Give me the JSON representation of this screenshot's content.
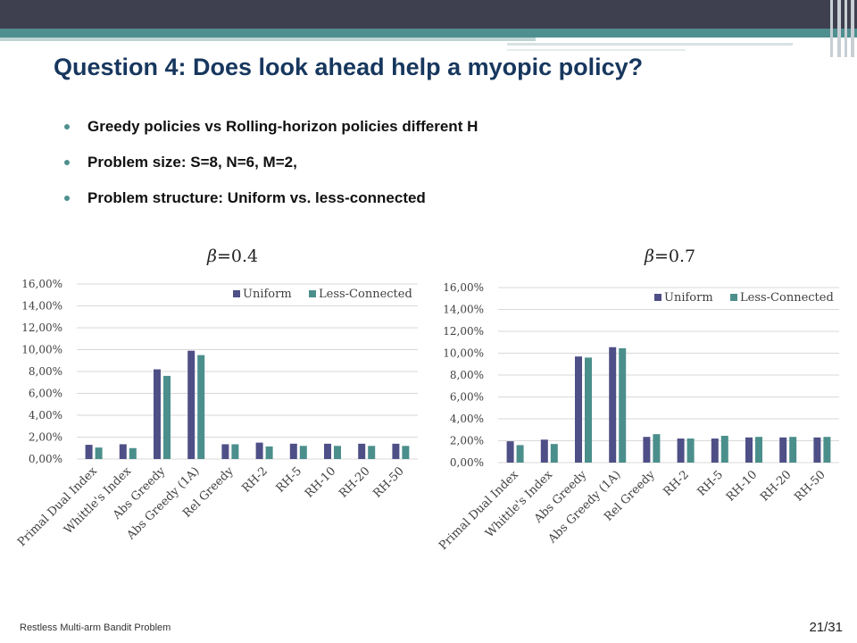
{
  "slide": {
    "title": "Question 4: Does look ahead help a myopic policy?",
    "bullets": [
      "Greedy policies vs Rolling-horizon policies different H",
      "Problem size: S=8, N=6, M=2,",
      "Problem structure: Uniform vs. less-connected"
    ],
    "footer_left": "Restless Multi-arm Bandit Problem",
    "page_number": "21/31"
  },
  "charts_header": [
    {
      "symbol": "β",
      "rest": "=0.4"
    },
    {
      "symbol": "β",
      "rest": "=0.7"
    }
  ],
  "colors": {
    "uniform": "#4f4f87",
    "less_connected": "#4b8f8c",
    "title": "#17375e",
    "accent_teal": "#4f8f8f"
  },
  "chart_data": [
    {
      "type": "bar",
      "categories": [
        "Primal Dual Index",
        "Whittle's Index",
        "Abs Greedy",
        "Abs Greedy (1A)",
        "Rel Greedy",
        "RH-2",
        "RH-5",
        "RH-10",
        "RH-20",
        "RH-50"
      ],
      "series": [
        {
          "name": "Uniform",
          "values": [
            1.3,
            1.35,
            8.2,
            9.9,
            1.35,
            1.5,
            1.4,
            1.4,
            1.4,
            1.4
          ]
        },
        {
          "name": "Less-Connected",
          "values": [
            1.05,
            1.0,
            7.6,
            9.5,
            1.35,
            1.15,
            1.2,
            1.2,
            1.2,
            1.2
          ]
        }
      ],
      "ylim": [
        0,
        16
      ],
      "yticks": [
        "0,00%",
        "2,00%",
        "4,00%",
        "6,00%",
        "8,00%",
        "10,00%",
        "12,00%",
        "14,00%",
        "16,00%"
      ],
      "grid": true,
      "legend": "top-right"
    },
    {
      "type": "bar",
      "categories": [
        "Primal Dual Index",
        "Whittle's Index",
        "Abs Greedy",
        "Abs Greedy (1A)",
        "Rel Greedy",
        "RH-2",
        "RH-5",
        "RH-10",
        "RH-20",
        "RH-50"
      ],
      "series": [
        {
          "name": "Uniform",
          "values": [
            1.95,
            2.1,
            9.7,
            10.55,
            2.35,
            2.2,
            2.2,
            2.3,
            2.3,
            2.3
          ]
        },
        {
          "name": "Less-Connected",
          "values": [
            1.6,
            1.7,
            9.6,
            10.45,
            2.6,
            2.2,
            2.45,
            2.35,
            2.35,
            2.35
          ]
        }
      ],
      "ylim": [
        0,
        16
      ],
      "yticks": [
        "0,00%",
        "2,00%",
        "4,00%",
        "6,00%",
        "8,00%",
        "10,00%",
        "12,00%",
        "14,00%",
        "16,00%"
      ],
      "grid": true,
      "legend": "top-right"
    }
  ]
}
